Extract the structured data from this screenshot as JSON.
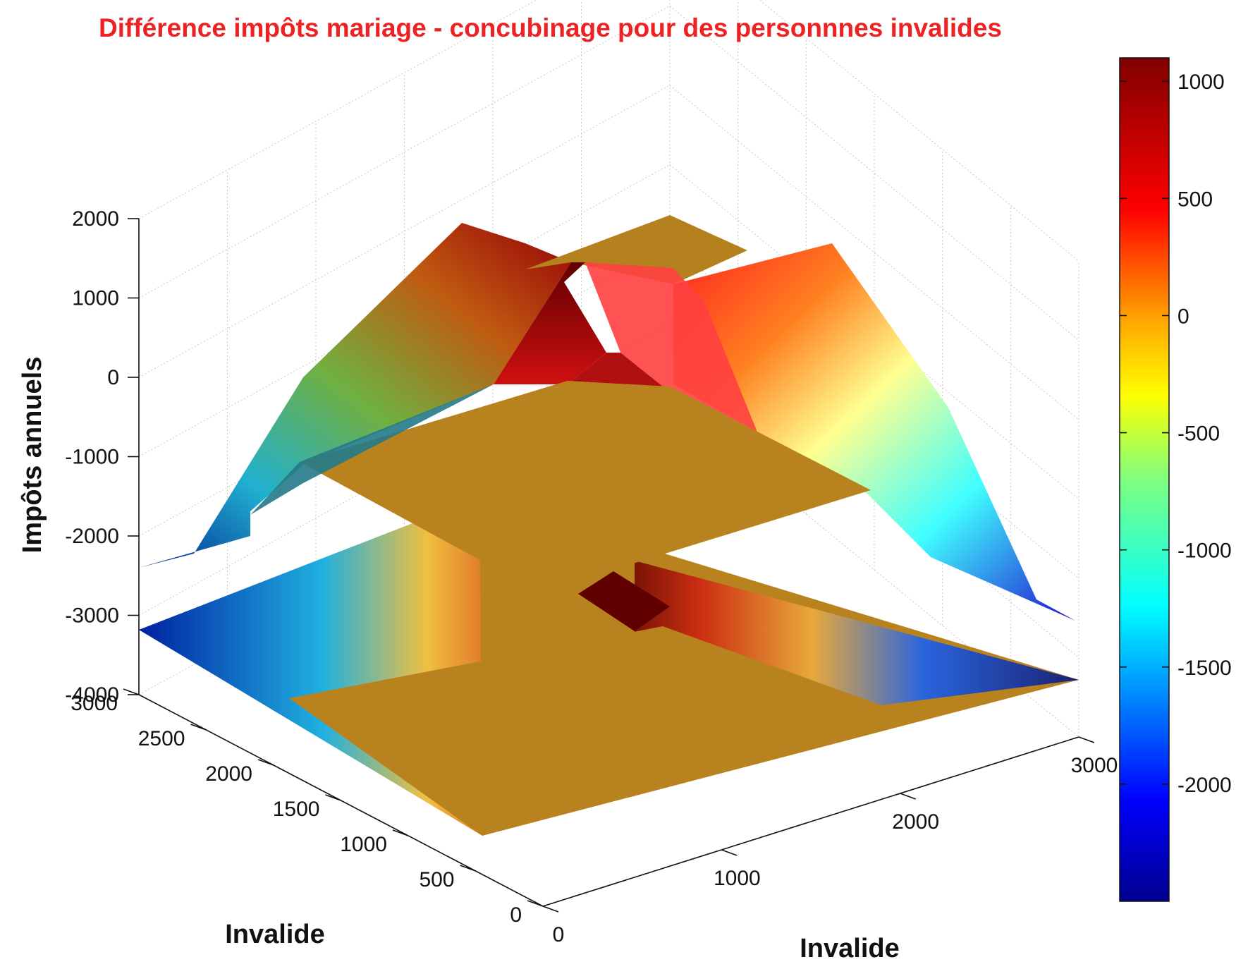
{
  "chart_data": {
    "type": "surface3d",
    "title": "Différence impôts mariage - concubinage pour des personnnes invalides",
    "zlabel": "Impôts annuels",
    "xlabel": "Invalide",
    "ylabel": "Invalide",
    "x_ticks": [
      "0",
      "1000",
      "2000",
      "3000"
    ],
    "y_ticks": [
      "0",
      "500",
      "1000",
      "1500",
      "2000",
      "2500",
      "3000"
    ],
    "z_ticks": [
      "2000",
      "1000",
      "0",
      "-1000",
      "-2000",
      "-3000",
      "-4000"
    ],
    "zlim": [
      -4000,
      2000
    ],
    "xlim": [
      0,
      3000
    ],
    "ylim": [
      0,
      3000
    ],
    "colorbar": {
      "ticks": [
        "1000",
        "500",
        "0",
        "-500",
        "-1000",
        "-1500",
        "-2000"
      ],
      "range": [
        -2500,
        1100
      ],
      "colormap": "jet"
    },
    "surface": {
      "flat_value": 0,
      "peak_value": 1050,
      "peak_location": [
        750,
        750
      ],
      "ridge_value_x_edge": 700,
      "ridge_value_y_edge": 800,
      "corner_value": -2500,
      "contour_projection_z": -3200
    },
    "grid": true,
    "colors": {
      "title": "#ee2222",
      "flat": "#b8821e"
    }
  }
}
